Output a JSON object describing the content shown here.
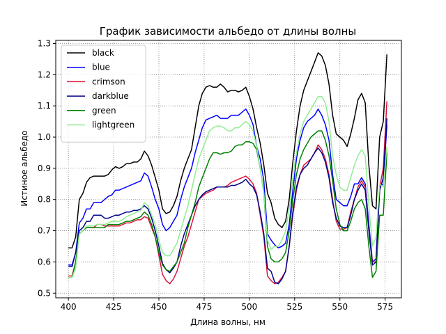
{
  "chart_data": {
    "type": "line",
    "title": "График зависимости альбедо от длины волны",
    "xlabel": "Длина волны, нм",
    "ylabel": "Истиное альбедо",
    "xlim": [
      393,
      584
    ],
    "ylim": [
      0.485,
      1.31
    ],
    "xticks": [
      400,
      425,
      450,
      475,
      500,
      525,
      550,
      575
    ],
    "yticks": [
      0.5,
      0.6,
      0.7,
      0.8,
      0.9,
      1.0,
      1.1,
      1.2,
      1.3
    ],
    "ytick_labels": [
      "0.5",
      "0.6",
      "0.7",
      "0.8",
      "0.9",
      "1.0",
      "1.1",
      "1.2",
      "1.3"
    ],
    "grid": true,
    "legend_position": "top-left",
    "x": [
      400,
      402,
      404,
      406,
      408,
      410,
      412,
      414,
      416,
      418,
      420,
      422,
      424,
      426,
      428,
      430,
      432,
      434,
      436,
      438,
      440,
      442,
      444,
      446,
      448,
      450,
      452,
      454,
      456,
      458,
      460,
      462,
      464,
      466,
      468,
      470,
      472,
      474,
      476,
      478,
      480,
      482,
      484,
      486,
      488,
      490,
      492,
      494,
      496,
      498,
      500,
      502,
      504,
      506,
      508,
      510,
      512,
      514,
      516,
      518,
      520,
      522,
      524,
      526,
      528,
      530,
      532,
      534,
      536,
      538,
      540,
      542,
      544,
      546,
      548,
      550,
      552,
      554,
      556,
      558,
      560,
      562,
      564,
      566,
      568,
      570,
      572,
      574,
      576
    ],
    "series": [
      {
        "name": "black",
        "color": "#000000",
        "values": [
          0.645,
          0.645,
          0.68,
          0.8,
          0.82,
          0.855,
          0.87,
          0.875,
          0.875,
          0.875,
          0.875,
          0.88,
          0.895,
          0.905,
          0.9,
          0.905,
          0.915,
          0.915,
          0.92,
          0.92,
          0.93,
          0.955,
          0.94,
          0.91,
          0.87,
          0.83,
          0.77,
          0.755,
          0.76,
          0.78,
          0.81,
          0.86,
          0.9,
          0.93,
          0.96,
          1.03,
          1.1,
          1.14,
          1.16,
          1.165,
          1.16,
          1.16,
          1.17,
          1.16,
          1.145,
          1.15,
          1.15,
          1.145,
          1.15,
          1.16,
          1.13,
          1.09,
          1.03,
          0.98,
          0.91,
          0.82,
          0.79,
          0.74,
          0.72,
          0.71,
          0.73,
          0.8,
          0.92,
          1.02,
          1.1,
          1.15,
          1.18,
          1.21,
          1.24,
          1.27,
          1.26,
          1.23,
          1.17,
          1.07,
          1.01,
          1.0,
          0.99,
          0.97,
          1.01,
          1.06,
          1.12,
          1.14,
          1.11,
          0.91,
          0.78,
          0.77,
          1.0,
          1.05,
          1.265
        ]
      },
      {
        "name": "blue",
        "color": "#0000ff",
        "values": [
          0.59,
          0.59,
          0.63,
          0.725,
          0.74,
          0.77,
          0.77,
          0.79,
          0.79,
          0.79,
          0.8,
          0.81,
          0.815,
          0.83,
          0.83,
          0.835,
          0.84,
          0.845,
          0.85,
          0.855,
          0.86,
          0.885,
          0.875,
          0.84,
          0.8,
          0.77,
          0.72,
          0.7,
          0.71,
          0.73,
          0.75,
          0.8,
          0.84,
          0.87,
          0.9,
          0.95,
          0.99,
          1.03,
          1.055,
          1.06,
          1.065,
          1.07,
          1.06,
          1.06,
          1.06,
          1.07,
          1.07,
          1.07,
          1.08,
          1.09,
          1.07,
          1.04,
          0.97,
          0.93,
          0.86,
          0.69,
          0.67,
          0.655,
          0.645,
          0.65,
          0.66,
          0.72,
          0.83,
          0.93,
          0.99,
          1.03,
          1.05,
          1.06,
          1.07,
          1.09,
          1.07,
          1.04,
          0.99,
          0.88,
          0.8,
          0.79,
          0.78,
          0.78,
          0.81,
          0.85,
          0.85,
          0.87,
          0.85,
          0.72,
          0.6,
          0.61,
          0.84,
          0.85,
          1.04
        ]
      },
      {
        "name": "crimson",
        "color": "#dc143c",
        "values": [
          0.555,
          0.555,
          0.6,
          0.69,
          0.7,
          0.71,
          0.71,
          0.71,
          0.72,
          0.72,
          0.715,
          0.715,
          0.715,
          0.715,
          0.715,
          0.72,
          0.725,
          0.725,
          0.73,
          0.735,
          0.735,
          0.745,
          0.74,
          0.71,
          0.68,
          0.62,
          0.56,
          0.54,
          0.53,
          0.545,
          0.57,
          0.61,
          0.65,
          0.68,
          0.72,
          0.76,
          0.8,
          0.81,
          0.82,
          0.825,
          0.83,
          0.84,
          0.84,
          0.84,
          0.845,
          0.855,
          0.86,
          0.865,
          0.87,
          0.875,
          0.865,
          0.85,
          0.82,
          0.75,
          0.68,
          0.555,
          0.54,
          0.53,
          0.535,
          0.55,
          0.57,
          0.65,
          0.75,
          0.83,
          0.88,
          0.91,
          0.92,
          0.93,
          0.95,
          0.975,
          0.96,
          0.93,
          0.88,
          0.8,
          0.73,
          0.705,
          0.705,
          0.71,
          0.76,
          0.8,
          0.84,
          0.86,
          0.84,
          0.7,
          0.6,
          0.6,
          0.84,
          0.9,
          1.115
        ]
      },
      {
        "name": "darkblue",
        "color": "#00008b",
        "values": [
          0.585,
          0.585,
          0.63,
          0.7,
          0.71,
          0.73,
          0.73,
          0.75,
          0.75,
          0.75,
          0.74,
          0.74,
          0.745,
          0.75,
          0.75,
          0.755,
          0.76,
          0.76,
          0.765,
          0.765,
          0.77,
          0.78,
          0.77,
          0.74,
          0.7,
          0.65,
          0.595,
          0.575,
          0.565,
          0.58,
          0.6,
          0.65,
          0.69,
          0.72,
          0.75,
          0.78,
          0.8,
          0.815,
          0.825,
          0.83,
          0.835,
          0.84,
          0.84,
          0.84,
          0.84,
          0.845,
          0.845,
          0.85,
          0.855,
          0.865,
          0.85,
          0.84,
          0.815,
          0.76,
          0.69,
          0.58,
          0.57,
          0.535,
          0.53,
          0.545,
          0.57,
          0.65,
          0.76,
          0.84,
          0.88,
          0.9,
          0.91,
          0.93,
          0.95,
          0.965,
          0.95,
          0.92,
          0.87,
          0.79,
          0.74,
          0.715,
          0.71,
          0.71,
          0.75,
          0.8,
          0.83,
          0.85,
          0.83,
          0.7,
          0.59,
          0.6,
          0.83,
          0.87,
          1.06
        ]
      },
      {
        "name": "green",
        "color": "#008000",
        "values": [
          0.55,
          0.55,
          0.6,
          0.69,
          0.7,
          0.71,
          0.71,
          0.71,
          0.71,
          0.71,
          0.71,
          0.72,
          0.72,
          0.72,
          0.72,
          0.725,
          0.73,
          0.73,
          0.735,
          0.74,
          0.745,
          0.76,
          0.75,
          0.72,
          0.68,
          0.63,
          0.59,
          0.575,
          0.57,
          0.585,
          0.6,
          0.63,
          0.66,
          0.71,
          0.75,
          0.79,
          0.84,
          0.87,
          0.9,
          0.93,
          0.95,
          0.95,
          0.945,
          0.95,
          0.95,
          0.955,
          0.97,
          0.975,
          0.975,
          0.985,
          0.985,
          0.98,
          0.96,
          0.9,
          0.82,
          0.65,
          0.61,
          0.6,
          0.6,
          0.61,
          0.63,
          0.7,
          0.8,
          0.88,
          0.93,
          0.96,
          0.98,
          1.0,
          1.01,
          1.02,
          1.02,
          0.99,
          0.94,
          0.86,
          0.77,
          0.72,
          0.7,
          0.7,
          0.73,
          0.77,
          0.79,
          0.8,
          0.77,
          0.65,
          0.55,
          0.57,
          0.75,
          0.75,
          0.95
        ]
      },
      {
        "name": "lightgreen",
        "color": "#90ee90",
        "values": [
          0.55,
          0.55,
          0.58,
          0.69,
          0.7,
          0.715,
          0.715,
          0.715,
          0.72,
          0.72,
          0.72,
          0.725,
          0.73,
          0.73,
          0.73,
          0.735,
          0.745,
          0.75,
          0.755,
          0.76,
          0.765,
          0.79,
          0.78,
          0.75,
          0.72,
          0.67,
          0.63,
          0.62,
          0.62,
          0.64,
          0.66,
          0.7,
          0.74,
          0.78,
          0.83,
          0.88,
          0.93,
          0.96,
          0.99,
          1.02,
          1.03,
          1.035,
          1.035,
          1.03,
          1.02,
          1.02,
          1.03,
          1.03,
          1.04,
          1.05,
          1.04,
          1.02,
          0.97,
          0.9,
          0.82,
          0.67,
          0.64,
          0.65,
          0.65,
          0.67,
          0.7,
          0.77,
          0.87,
          0.95,
          1.01,
          1.05,
          1.07,
          1.09,
          1.11,
          1.13,
          1.13,
          1.11,
          1.05,
          0.94,
          0.88,
          0.84,
          0.83,
          0.83,
          0.87,
          0.91,
          0.94,
          0.96,
          0.94,
          0.78,
          0.65,
          0.68,
          0.85,
          0.84,
          0.97
        ]
      }
    ]
  }
}
